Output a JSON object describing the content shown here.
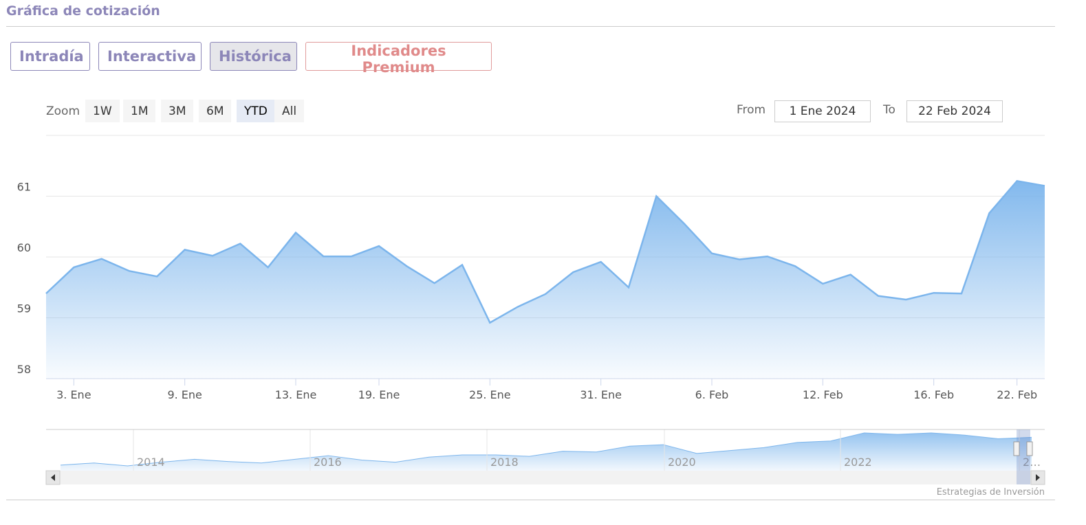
{
  "header": {
    "title": "Gráfica de cotización"
  },
  "tabs": [
    "Intradía",
    "Interactiva",
    "Histórica",
    "Indicadores Premium"
  ],
  "zoom": {
    "label": "Zoom",
    "buttons": [
      "1W",
      "1M",
      "3M",
      "6M",
      "YTD",
      "All"
    ]
  },
  "range": {
    "from_label": "From",
    "from": "1 Ene 2024",
    "to_label": "To",
    "to": "22 Feb 2024"
  },
  "credits": "Estrategias de Inversión",
  "chart_data": {
    "type": "area",
    "color": "#7cb5ec",
    "categories": [
      null,
      "3. Ene",
      null,
      null,
      null,
      "9. Ene",
      null,
      null,
      null,
      "13. Ene",
      null,
      null,
      "19. Ene",
      null,
      null,
      null,
      "25. Ene",
      null,
      null,
      null,
      "31. Ene",
      null,
      null,
      null,
      "6. Feb",
      null,
      null,
      null,
      "12. Feb",
      null,
      null,
      null,
      "16. Feb",
      null,
      null,
      "22. Feb",
      null
    ],
    "values": [
      59.4,
      59.83,
      59.97,
      59.77,
      59.68,
      60.12,
      60.02,
      60.22,
      59.83,
      60.4,
      60.01,
      60.01,
      60.18,
      59.85,
      59.57,
      59.87,
      58.92,
      59.18,
      59.39,
      59.75,
      59.92,
      59.5,
      61.0,
      60.55,
      60.06,
      59.96,
      60.01,
      59.85,
      59.56,
      59.71,
      59.36,
      59.3,
      59.41,
      59.4,
      60.72,
      61.25,
      61.17
    ],
    "ylim": [
      58,
      62
    ],
    "yticks": [
      58,
      59,
      60,
      61
    ],
    "grid": true,
    "navigator": {
      "labels": [
        "2014",
        "2016",
        "2018",
        "2020",
        "2022",
        "2…"
      ],
      "values": [
        39.4,
        41.2,
        38.8,
        41.8,
        44.2,
        42.4,
        41.2,
        44.2,
        47.2,
        43.6,
        41.8,
        46,
        47.8,
        47.8,
        46.6,
        50.8,
        50.2,
        55,
        56.2,
        49,
        51.4,
        53.8,
        58,
        59.2,
        65.8,
        64.6,
        65.8,
        64,
        61,
        62.2
      ]
    }
  }
}
